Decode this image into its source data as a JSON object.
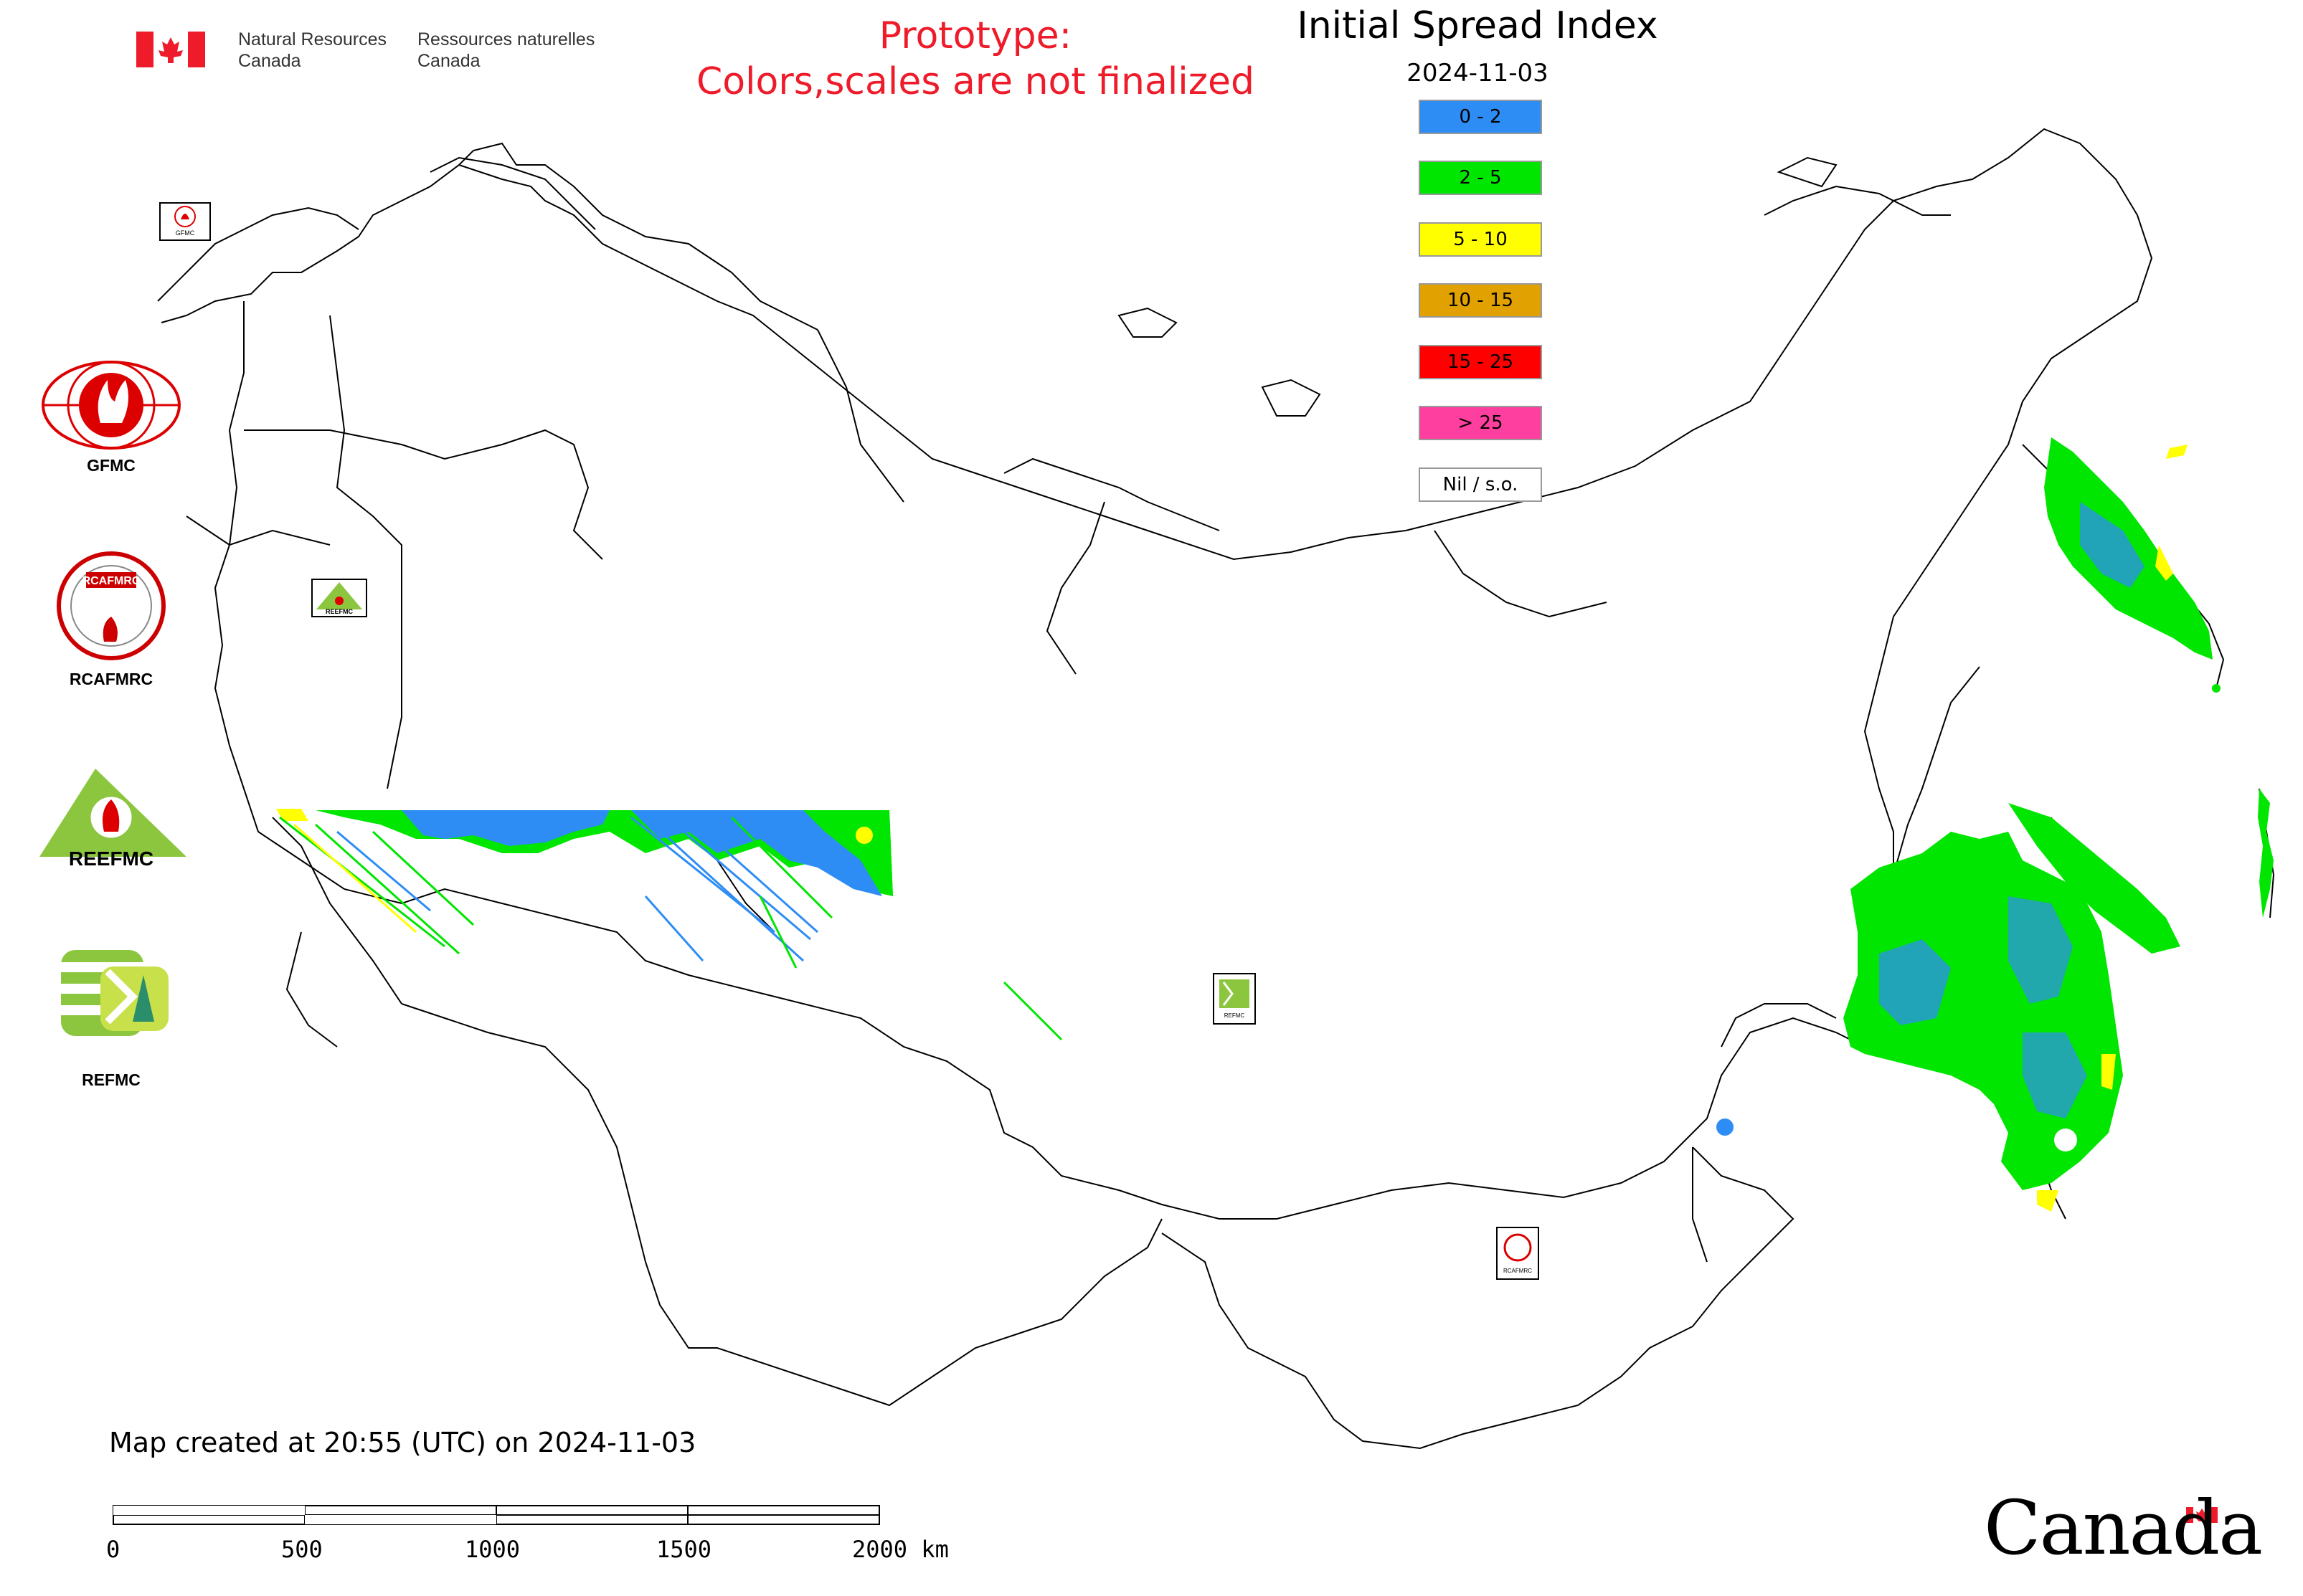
{
  "header": {
    "dept_en_line1": "Natural Resources",
    "dept_en_line2": "Canada",
    "dept_fr_line1": "Ressources naturelles",
    "dept_fr_line2": "Canada",
    "prototype_line1": "Prototype:",
    "prototype_line2": "Colors,scales are not finalized"
  },
  "map": {
    "title": "Initial Spread Index",
    "date": "2024-11-03"
  },
  "legend": {
    "items": [
      {
        "label": "0 - 2",
        "color": "#2e8df5"
      },
      {
        "label": "2 - 5",
        "color": "#00e600"
      },
      {
        "label": "5 - 10",
        "color": "#ffff00"
      },
      {
        "label": "10 - 15",
        "color": "#e1a100"
      },
      {
        "label": "15 - 25",
        "color": "#ff0000"
      },
      {
        "label": "> 25",
        "color": "#ff3fa0"
      },
      {
        "label": "Nil / s.o.",
        "color": "#ffffff"
      }
    ]
  },
  "organizations": {
    "gfmc": "GFMC",
    "rcafmrc": "RCAFMRC",
    "reefmc": "REEFMC",
    "refmc": "REFMC",
    "rcafmrc_ring_text": "RCAFMRC",
    "reefmc_logo_text": "REEFMC",
    "gfmc_small": "GFMC",
    "reefmc_small": "REEFMC",
    "refmc_small": "REFMC",
    "rcafmrc_small": "RCAFMRC"
  },
  "footer": {
    "created": "Map created at 20:55 (UTC) on 2024-11-03",
    "wordmark": "Canada"
  },
  "scale_bar": {
    "ticks": [
      "0",
      "500",
      "1000",
      "1500",
      "2000 km"
    ]
  }
}
